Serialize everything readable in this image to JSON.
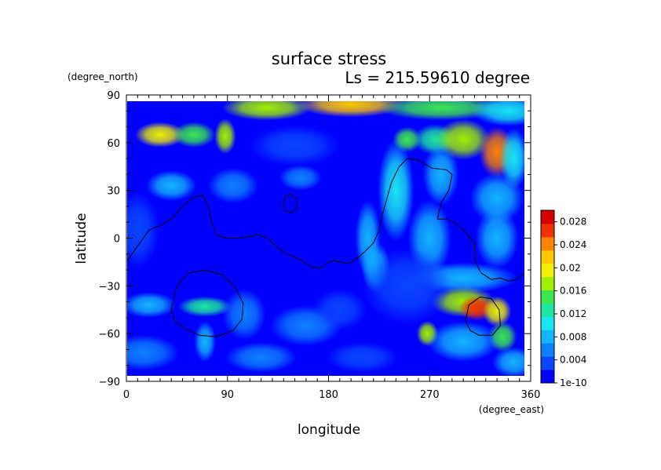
{
  "chart_data": {
    "type": "heatmap",
    "title": "surface stress",
    "subtitle": "Ls = 215.59610 degree",
    "xlabel": "longitude",
    "ylabel": "latitude",
    "x_unit": "(degree_east)",
    "y_unit": "(degree_north)",
    "xlim": [
      0,
      360
    ],
    "ylim": [
      -90,
      90
    ],
    "x_ticks": [
      0,
      90,
      180,
      270,
      360
    ],
    "y_ticks": [
      90,
      60,
      30,
      0,
      -30,
      -60,
      -90
    ],
    "x_tick_labels": [
      "0",
      "90",
      "180",
      "270",
      "360"
    ],
    "y_tick_labels": [
      "90",
      "60",
      "30",
      "0",
      "−30",
      "−60",
      "−90"
    ],
    "grid": false,
    "colorbar": {
      "placement": "right",
      "range": [
        1e-10,
        0.03
      ],
      "tick_values": [
        1e-10,
        0.004,
        0.008,
        0.012,
        0.016,
        0.02,
        0.024,
        0.028
      ],
      "tick_labels": [
        "1e-10",
        "0.004",
        "0.008",
        "0.012",
        "0.016",
        "0.02",
        "0.024",
        "0.028"
      ],
      "colors": [
        "#0000ff",
        "#0a46ff",
        "#0e80ff",
        "#14b4ff",
        "#19e6f0",
        "#1ee6a0",
        "#3ce650",
        "#a0f000",
        "#f0f000",
        "#ffc800",
        "#ff8200",
        "#f03200",
        "#d20000"
      ]
    },
    "features": [
      {
        "lon": 125,
        "lat": 82,
        "value": 0.018,
        "slon": 25,
        "slat": 5
      },
      {
        "lon": 200,
        "lat": 84,
        "value": 0.022,
        "slon": 30,
        "slat": 5
      },
      {
        "lon": 280,
        "lat": 82,
        "value": 0.014,
        "slon": 35,
        "slat": 5
      },
      {
        "lon": 340,
        "lat": 80,
        "value": 0.01,
        "slon": 20,
        "slat": 6
      },
      {
        "lon": 30,
        "lat": 65,
        "value": 0.019,
        "slon": 14,
        "slat": 5
      },
      {
        "lon": 60,
        "lat": 65,
        "value": 0.016,
        "slon": 12,
        "slat": 5
      },
      {
        "lon": 88,
        "lat": 64,
        "value": 0.018,
        "slon": 6,
        "slat": 7
      },
      {
        "lon": 250,
        "lat": 62,
        "value": 0.016,
        "slon": 8,
        "slat": 5
      },
      {
        "lon": 275,
        "lat": 62,
        "value": 0.013,
        "slon": 12,
        "slat": 6
      },
      {
        "lon": 300,
        "lat": 62,
        "value": 0.017,
        "slon": 15,
        "slat": 8
      },
      {
        "lon": 330,
        "lat": 54,
        "value": 0.025,
        "slon": 10,
        "slat": 10
      },
      {
        "lon": 345,
        "lat": 50,
        "value": 0.011,
        "slon": 8,
        "slat": 12
      },
      {
        "lon": 150,
        "lat": 58,
        "value": 0.003,
        "slon": 25,
        "slat": 8
      },
      {
        "lon": 40,
        "lat": 33,
        "value": 0.008,
        "slon": 14,
        "slat": 6
      },
      {
        "lon": 95,
        "lat": 33,
        "value": 0.006,
        "slon": 14,
        "slat": 7
      },
      {
        "lon": 155,
        "lat": 38,
        "value": 0.005,
        "slon": 12,
        "slat": 5
      },
      {
        "lon": 240,
        "lat": 30,
        "value": 0.01,
        "slon": 10,
        "slat": 20
      },
      {
        "lon": 280,
        "lat": 40,
        "value": 0.009,
        "slon": 10,
        "slat": 12
      },
      {
        "lon": 330,
        "lat": 25,
        "value": 0.009,
        "slon": 15,
        "slat": 10
      },
      {
        "lon": 10,
        "lat": 5,
        "value": 0.004,
        "slon": 12,
        "slat": 15
      },
      {
        "lon": 215,
        "lat": 0,
        "value": 0.009,
        "slon": 7,
        "slat": 15
      },
      {
        "lon": 222,
        "lat": -18,
        "value": 0.007,
        "slon": 8,
        "slat": 10
      },
      {
        "lon": 270,
        "lat": 0,
        "value": 0.007,
        "slon": 12,
        "slat": 15
      },
      {
        "lon": 330,
        "lat": 0,
        "value": 0.008,
        "slon": 12,
        "slat": 12
      },
      {
        "lon": 300,
        "lat": -25,
        "value": 0.008,
        "slon": 30,
        "slat": 6
      },
      {
        "lon": 70,
        "lat": -43,
        "value": 0.012,
        "slon": 15,
        "slat": 4
      },
      {
        "lon": 20,
        "lat": -42,
        "value": 0.007,
        "slon": 15,
        "slat": 5
      },
      {
        "lon": 105,
        "lat": -48,
        "value": 0.006,
        "slon": 12,
        "slat": 10
      },
      {
        "lon": 70,
        "lat": -65,
        "value": 0.008,
        "slon": 6,
        "slat": 8
      },
      {
        "lon": 160,
        "lat": -55,
        "value": 0.005,
        "slon": 20,
        "slat": 8
      },
      {
        "lon": 190,
        "lat": -45,
        "value": 0.004,
        "slon": 15,
        "slat": 8
      },
      {
        "lon": 300,
        "lat": -40,
        "value": 0.017,
        "slon": 18,
        "slat": 6
      },
      {
        "lon": 312,
        "lat": -44,
        "value": 0.026,
        "slon": 10,
        "slat": 5
      },
      {
        "lon": 330,
        "lat": -46,
        "value": 0.02,
        "slon": 8,
        "slat": 6
      },
      {
        "lon": 268,
        "lat": -60,
        "value": 0.018,
        "slon": 6,
        "slat": 5
      },
      {
        "lon": 335,
        "lat": -62,
        "value": 0.014,
        "slon": 8,
        "slat": 6
      },
      {
        "lon": 300,
        "lat": -65,
        "value": 0.008,
        "slon": 20,
        "slat": 8
      },
      {
        "lon": 15,
        "lat": -72,
        "value": 0.006,
        "slon": 20,
        "slat": 7
      },
      {
        "lon": 120,
        "lat": -75,
        "value": 0.005,
        "slon": 20,
        "slat": 6
      },
      {
        "lon": 210,
        "lat": -75,
        "value": 0.004,
        "slon": 20,
        "slat": 6
      },
      {
        "lon": 345,
        "lat": -78,
        "value": 0.008,
        "slon": 12,
        "slat": 6
      },
      {
        "lon": 250,
        "lat": -30,
        "value": 0.003,
        "slon": 25,
        "slat": 15
      }
    ],
    "contours": [
      [
        [
          0,
          -15
        ],
        [
          10,
          -5
        ],
        [
          20,
          5
        ],
        [
          30,
          8
        ],
        [
          40,
          12
        ],
        [
          50,
          20
        ],
        [
          60,
          26
        ],
        [
          68,
          27
        ],
        [
          73,
          20
        ],
        [
          76,
          10
        ],
        [
          80,
          2
        ],
        [
          88,
          0
        ],
        [
          100,
          0
        ],
        [
          110,
          1
        ],
        [
          118,
          2
        ],
        [
          126,
          0
        ],
        [
          133,
          -5
        ],
        [
          140,
          -9
        ],
        [
          150,
          -12
        ],
        [
          158,
          -15
        ],
        [
          165,
          -18
        ],
        [
          172,
          -19
        ],
        [
          178,
          -16
        ],
        [
          184,
          -14
        ],
        [
          190,
          -15
        ],
        [
          198,
          -16
        ],
        [
          205,
          -13
        ],
        [
          213,
          -8
        ],
        [
          220,
          -3
        ],
        [
          225,
          5
        ],
        [
          228,
          15
        ],
        [
          232,
          25
        ],
        [
          236,
          35
        ],
        [
          243,
          45
        ],
        [
          250,
          50
        ],
        [
          260,
          49
        ],
        [
          272,
          44
        ],
        [
          285,
          43
        ],
        [
          290,
          40
        ],
        [
          287,
          30
        ],
        [
          280,
          22
        ],
        [
          277,
          12
        ],
        [
          285,
          12
        ],
        [
          294,
          9
        ],
        [
          303,
          3
        ],
        [
          310,
          -3
        ],
        [
          310,
          -14
        ],
        [
          316,
          -22
        ],
        [
          325,
          -26
        ],
        [
          333,
          -25
        ],
        [
          340,
          -27
        ],
        [
          347,
          -26
        ],
        [
          355,
          -22
        ],
        [
          360,
          -20
        ]
      ],
      [
        [
          140,
          20
        ],
        [
          141,
          26
        ],
        [
          146,
          28
        ],
        [
          151,
          25
        ],
        [
          152,
          19
        ],
        [
          147,
          16
        ],
        [
          141,
          17
        ],
        [
          140,
          20
        ]
      ],
      [
        [
          40,
          -45
        ],
        [
          45,
          -30
        ],
        [
          55,
          -22
        ],
        [
          70,
          -20
        ],
        [
          85,
          -23
        ],
        [
          96,
          -30
        ],
        [
          104,
          -41
        ],
        [
          103,
          -51
        ],
        [
          95,
          -58
        ],
        [
          80,
          -62
        ],
        [
          65,
          -61
        ],
        [
          52,
          -57
        ],
        [
          43,
          -52
        ],
        [
          40,
          -45
        ]
      ],
      [
        [
          302,
          -52
        ],
        [
          305,
          -42
        ],
        [
          315,
          -37
        ],
        [
          325,
          -38
        ],
        [
          332,
          -45
        ],
        [
          333,
          -55
        ],
        [
          326,
          -61
        ],
        [
          314,
          -61
        ],
        [
          306,
          -58
        ],
        [
          302,
          -52
        ]
      ]
    ]
  }
}
